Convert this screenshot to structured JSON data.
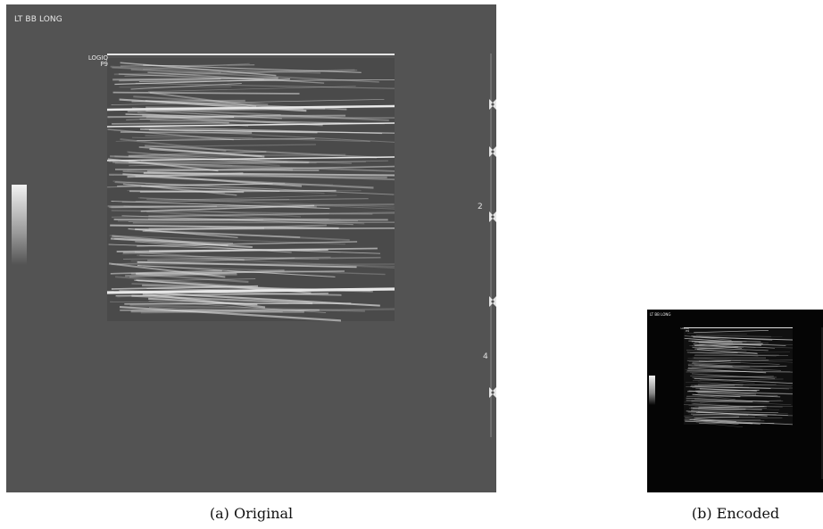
{
  "panels": [
    {
      "id": "original",
      "overlay_label": "LT BB LONG",
      "device_label_line1": "LOGIQ",
      "device_label_line2": "P9",
      "depth_tick_labels": [
        "2",
        "4"
      ],
      "caption": "(a) Original"
    },
    {
      "id": "encoded",
      "overlay_label": "LT BB LONG",
      "device_label_line1": "LOGIQ",
      "device_label_line2": "P9",
      "caption": "(b) Encoded"
    }
  ],
  "colors": {
    "original_background": "#535353",
    "encoded_background": "#050505",
    "speckle": "#dcdcdc"
  }
}
